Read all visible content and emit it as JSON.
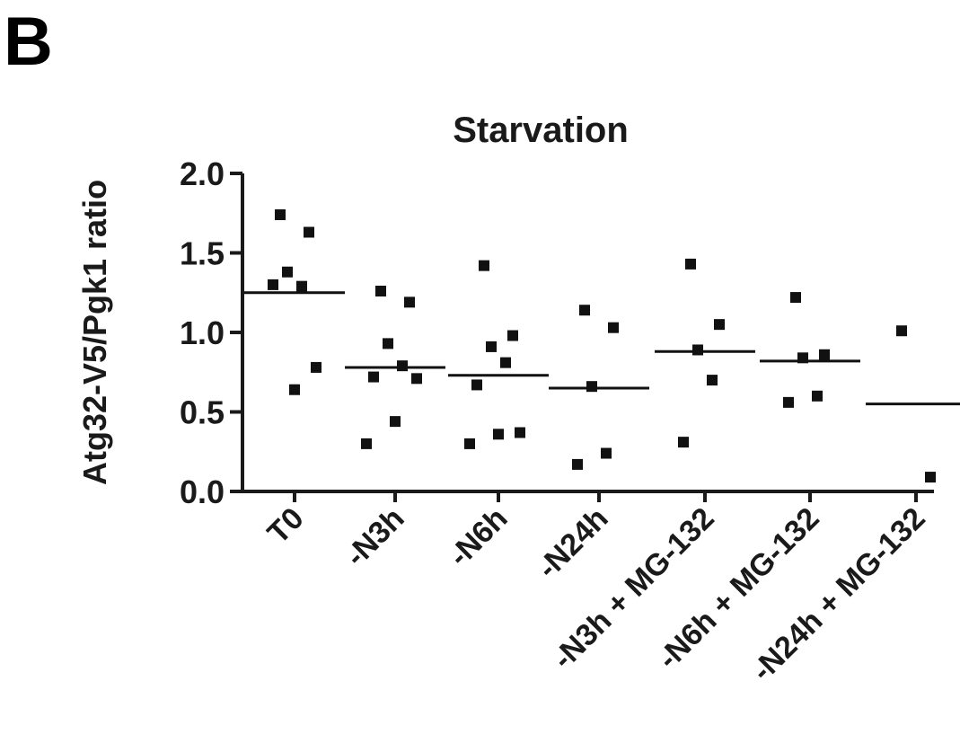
{
  "panel_label": "B",
  "chart_data": {
    "type": "scatter",
    "title": "Starvation",
    "xlabel": "",
    "ylabel": "Atg32-V5/Pgk1 ratio",
    "ylim": [
      0,
      2
    ],
    "yticks": [
      "0.0",
      "0.5",
      "1.0",
      "1.5",
      "2.0"
    ],
    "grid": false,
    "categories": [
      "T0",
      "-N3h",
      "-N6h",
      "-N24h",
      "-N3h + MG-132",
      "-N6h + MG-132",
      "-N24h + MG-132"
    ],
    "series": [
      {
        "category": "T0",
        "points": [
          1.74,
          1.63,
          1.38,
          1.29,
          1.3,
          0.78,
          0.64
        ],
        "mean": 1.25
      },
      {
        "category": "-N3h",
        "points": [
          1.26,
          1.19,
          0.93,
          0.79,
          0.72,
          0.71,
          0.44,
          0.3
        ],
        "mean": 0.78
      },
      {
        "category": "-N6h",
        "points": [
          1.42,
          0.98,
          0.91,
          0.81,
          0.67,
          0.37,
          0.36,
          0.3
        ],
        "mean": 0.73
      },
      {
        "category": "-N24h",
        "points": [
          1.14,
          1.03,
          0.66,
          0.24,
          0.17
        ],
        "mean": 0.65
      },
      {
        "category": "-N3h + MG-132",
        "points": [
          1.43,
          1.05,
          0.89,
          0.7,
          0.31
        ],
        "mean": 0.88
      },
      {
        "category": "-N6h + MG-132",
        "points": [
          1.22,
          0.86,
          0.84,
          0.6,
          0.56
        ],
        "mean": 0.82
      },
      {
        "category": "-N24h + MG-132",
        "points": [
          1.01,
          0.09
        ],
        "mean": 0.55
      }
    ]
  }
}
